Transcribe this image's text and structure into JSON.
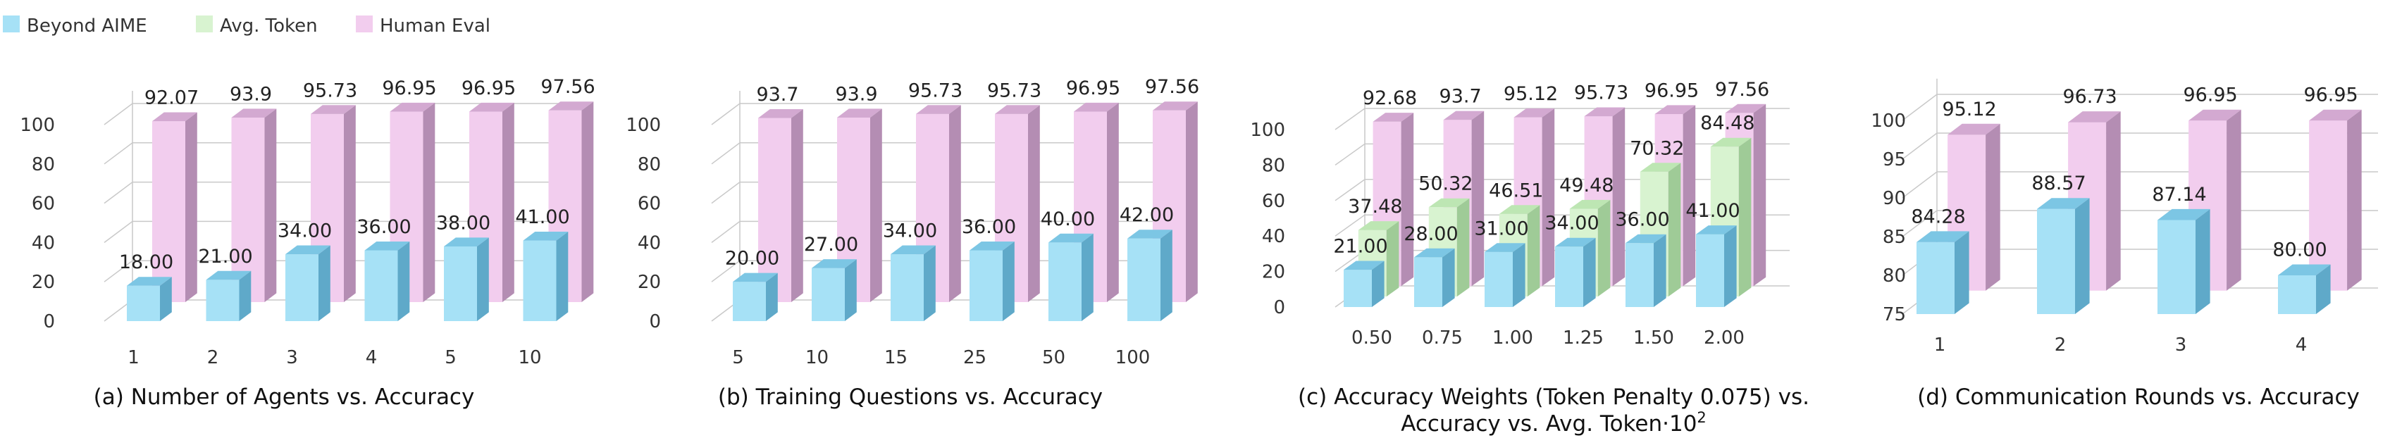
{
  "colors": {
    "beyond": "#a6e1f6",
    "beyond_side": "#5fa9c9",
    "beyond_top": "#7cc6e4",
    "token": "#d8f3d0",
    "token_side": "#9fcb97",
    "token_top": "#bde6b3",
    "human": "#f2cdee",
    "human_side": "#b48db3",
    "human_top": "#d3a9d1",
    "wall": "#c9c9c9"
  },
  "legend": [
    {
      "key": "beyond",
      "label": "Beyond AIME",
      "icon": "blue-square"
    },
    {
      "key": "token",
      "label": "Avg. Token",
      "icon": "green-square"
    },
    {
      "key": "human",
      "label": "Human Eval",
      "icon": "pink-square"
    }
  ],
  "chart_data": [
    {
      "type": "bar",
      "title": "(a) Number of Agents vs. Accuracy",
      "categories": [
        "1",
        "2",
        "3",
        "4",
        "5",
        "10"
      ],
      "yticks": [
        "0",
        "20",
        "40",
        "60",
        "80",
        "100"
      ],
      "ylim": [
        0,
        100
      ],
      "series": [
        {
          "key": "beyond",
          "name": "Beyond AIME",
          "values": [
            18.0,
            21.0,
            34.0,
            36.0,
            38.0,
            41.0
          ],
          "labels": [
            "18.00",
            "21.00",
            "34.00",
            "36.00",
            "38.00",
            "41.00"
          ]
        },
        {
          "key": "human",
          "name": "Human Eval",
          "values": [
            92.07,
            93.9,
            95.73,
            96.95,
            96.95,
            97.56
          ],
          "labels": [
            "92.07",
            "93.9",
            "95.73",
            "96.95",
            "96.95",
            "97.56"
          ]
        }
      ]
    },
    {
      "type": "bar",
      "title": "(b) Training Questions vs. Accuracy",
      "categories": [
        "5",
        "10",
        "15",
        "25",
        "50",
        "100"
      ],
      "yticks": [
        "0",
        "20",
        "40",
        "60",
        "80",
        "100"
      ],
      "ylim": [
        0,
        100
      ],
      "series": [
        {
          "key": "beyond",
          "name": "Beyond AIME",
          "values": [
            20.0,
            27.0,
            34.0,
            36.0,
            40.0,
            42.0
          ],
          "labels": [
            "20.00",
            "27.00",
            "34.00",
            "36.00",
            "40.00",
            "42.00"
          ]
        },
        {
          "key": "human",
          "name": "Human Eval",
          "values": [
            93.7,
            93.9,
            95.73,
            95.73,
            96.95,
            97.56
          ],
          "labels": [
            "93.7",
            "93.9",
            "95.73",
            "95.73",
            "96.95",
            "97.56"
          ]
        }
      ]
    },
    {
      "type": "bar",
      "title": "(c) Accuracy Weights (Token Penalty 0.075) vs.",
      "title_line2": "Accuracy vs. Avg. Token·10",
      "title_sup": "2",
      "categories": [
        "0.50",
        "0.75",
        "1.00",
        "1.25",
        "1.50",
        "2.00"
      ],
      "yticks": [
        "0",
        "20",
        "40",
        "60",
        "80",
        "100"
      ],
      "ylim": [
        0,
        100
      ],
      "series": [
        {
          "key": "beyond",
          "name": "Beyond AIME",
          "values": [
            21.0,
            28.0,
            31.0,
            34.0,
            36.0,
            41.0
          ],
          "labels": [
            "21.00",
            "28.00",
            "31.00",
            "34.00",
            "36.00",
            "41.00"
          ]
        },
        {
          "key": "token",
          "name": "Avg. Token",
          "values": [
            37.48,
            50.32,
            46.51,
            49.48,
            70.32,
            84.48
          ],
          "labels": [
            "37.48",
            "50.32",
            "46.51",
            "49.48",
            "70.32",
            "84.48"
          ]
        },
        {
          "key": "human",
          "name": "Human Eval",
          "values": [
            92.68,
            93.7,
            95.12,
            95.73,
            96.95,
            97.56
          ],
          "labels": [
            "92.68",
            "93.7",
            "95.12",
            "95.73",
            "96.95",
            "97.56"
          ]
        }
      ]
    },
    {
      "type": "bar",
      "title": "(d) Communication Rounds vs. Accuracy",
      "categories": [
        "1",
        "2",
        "3",
        "4"
      ],
      "yticks": [
        "75",
        "80",
        "85",
        "90",
        "95",
        "100"
      ],
      "ylim": [
        75,
        100
      ],
      "series": [
        {
          "key": "beyond",
          "name": "Beyond AIME",
          "values": [
            84.28,
            88.57,
            87.14,
            80.0
          ],
          "labels": [
            "84.28",
            "88.57",
            "87.14",
            "80.00"
          ]
        },
        {
          "key": "human",
          "name": "Human Eval",
          "values": [
            95.12,
            96.73,
            96.95,
            96.95
          ],
          "labels": [
            "95.12",
            "96.73",
            "96.95",
            "96.95"
          ]
        }
      ]
    }
  ]
}
